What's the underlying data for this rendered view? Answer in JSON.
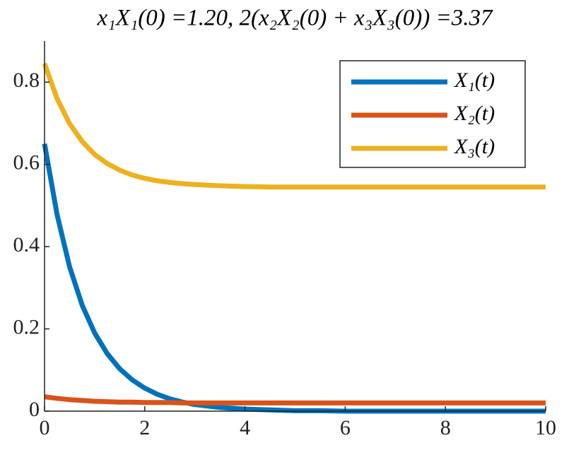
{
  "chart_data": {
    "type": "line",
    "title": "x₁X₁(0) =1.20, 2(x₂X₂(0) + x₃X₃(0)) =3.37",
    "x": [
      0,
      0.25,
      0.5,
      0.75,
      1,
      1.25,
      1.5,
      1.75,
      2,
      2.25,
      2.5,
      2.75,
      3,
      3.5,
      4,
      4.5,
      5,
      5.5,
      6,
      6.5,
      7,
      7.5,
      8,
      8.5,
      9,
      9.5,
      10
    ],
    "series": [
      {
        "name": "X₁(t)",
        "color": "#0072bd",
        "values": [
          0.65,
          0.478,
          0.351,
          0.258,
          0.19,
          0.14,
          0.103,
          0.076,
          0.056,
          0.041,
          0.03,
          0.022,
          0.016,
          0.009,
          0.005,
          0.003,
          0.001,
          0.001,
          0,
          0,
          0,
          0,
          0,
          0,
          0,
          0,
          0
        ]
      },
      {
        "name": "X₂(t)",
        "color": "#d95319",
        "values": [
          0.035,
          0.031,
          0.028,
          0.026,
          0.024,
          0.023,
          0.022,
          0.022,
          0.021,
          0.021,
          0.021,
          0.02,
          0.02,
          0.02,
          0.02,
          0.02,
          0.02,
          0.02,
          0.02,
          0.02,
          0.02,
          0.02,
          0.02,
          0.02,
          0.02,
          0.02,
          0.02
        ]
      },
      {
        "name": "X₃(t)",
        "color": "#edb120",
        "values": [
          0.845,
          0.76,
          0.699,
          0.656,
          0.624,
          0.602,
          0.586,
          0.574,
          0.566,
          0.56,
          0.556,
          0.553,
          0.551,
          0.548,
          0.546,
          0.545,
          0.545,
          0.545,
          0.545,
          0.545,
          0.545,
          0.545,
          0.545,
          0.545,
          0.545,
          0.545,
          0.545
        ]
      }
    ],
    "xlim": [
      0,
      10
    ],
    "xticks": [
      0,
      2,
      4,
      6,
      8,
      10
    ],
    "ylim": [
      0,
      0.9
    ],
    "yticks": [
      0,
      0.2,
      0.4,
      0.6,
      0.8
    ],
    "grid": false,
    "legend": "northeast"
  }
}
